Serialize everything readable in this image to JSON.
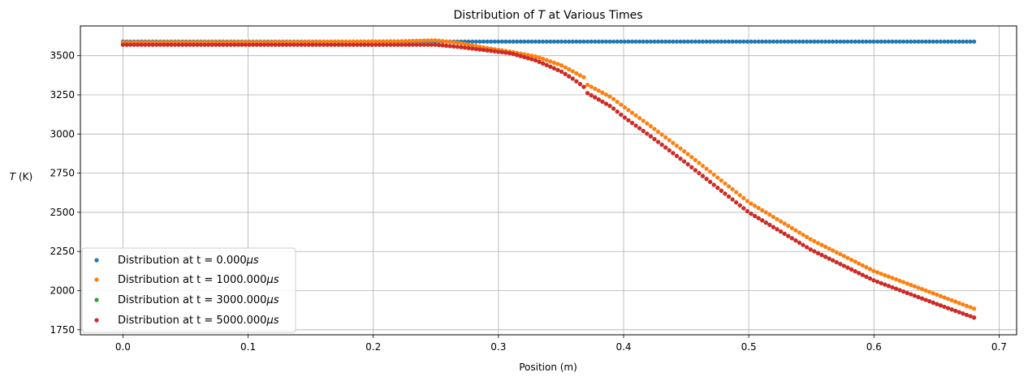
{
  "chart_data": {
    "type": "scatter",
    "title_prefix": "Distribution of ",
    "title_var": "T",
    "title_suffix": " at Various Times",
    "xlabel": "Position (m)",
    "ylabel_var": "T",
    "ylabel_unit": " (K)",
    "xlim": [
      -0.034,
      0.714
    ],
    "ylim": [
      1718,
      3690
    ],
    "xticks": [
      0.0,
      0.1,
      0.2,
      0.3,
      0.4,
      0.5,
      0.6,
      0.7
    ],
    "xtick_labels": [
      "0.0",
      "0.1",
      "0.2",
      "0.3",
      "0.4",
      "0.5",
      "0.6",
      "0.7"
    ],
    "yticks": [
      1750,
      2000,
      2250,
      2500,
      2750,
      3000,
      3250,
      3500
    ],
    "ytick_labels": [
      "1750",
      "2000",
      "2250",
      "2500",
      "2750",
      "3000",
      "3250",
      "3500"
    ],
    "grid": true,
    "legend_position": "lower-left",
    "x_range": [
      0.0,
      0.68
    ],
    "points_per_series": 230,
    "series": [
      {
        "name_prefix": "Distribution at t = 0.000",
        "name_unit": "μs",
        "color": "#1f77b4",
        "profile": [
          [
            0.0,
            3590
          ],
          [
            0.68,
            3590
          ]
        ]
      },
      {
        "name_prefix": "Distribution at t = 1000.000",
        "name_unit": "μs",
        "color": "#ff7f0e",
        "profile": [
          [
            0.0,
            3585
          ],
          [
            0.14,
            3588
          ],
          [
            0.22,
            3592
          ],
          [
            0.25,
            3598
          ],
          [
            0.27,
            3580
          ],
          [
            0.29,
            3550
          ],
          [
            0.31,
            3525
          ],
          [
            0.33,
            3495
          ],
          [
            0.35,
            3440
          ],
          [
            0.37,
            3355
          ],
          [
            0.371,
            3315
          ],
          [
            0.39,
            3235
          ],
          [
            0.4,
            3175
          ],
          [
            0.42,
            3060
          ],
          [
            0.45,
            2880
          ],
          [
            0.5,
            2565
          ],
          [
            0.55,
            2325
          ],
          [
            0.6,
            2125
          ],
          [
            0.65,
            1975
          ],
          [
            0.68,
            1885
          ]
        ]
      },
      {
        "name_prefix": "Distribution at t = 3000.000",
        "name_unit": "μs",
        "color": "#2ca02c",
        "profile": [
          [
            0.0,
            3570
          ],
          [
            0.25,
            3570
          ],
          [
            0.27,
            3555
          ],
          [
            0.29,
            3535
          ],
          [
            0.31,
            3515
          ],
          [
            0.33,
            3470
          ],
          [
            0.35,
            3400
          ],
          [
            0.36,
            3350
          ],
          [
            0.37,
            3290
          ],
          [
            0.371,
            3262
          ],
          [
            0.39,
            3175
          ],
          [
            0.4,
            3110
          ],
          [
            0.42,
            2995
          ],
          [
            0.45,
            2815
          ],
          [
            0.5,
            2500
          ],
          [
            0.55,
            2260
          ],
          [
            0.6,
            2065
          ],
          [
            0.65,
            1915
          ],
          [
            0.68,
            1828
          ]
        ]
      },
      {
        "name_prefix": "Distribution at t = 5000.000",
        "name_unit": "μs",
        "color": "#d62728",
        "profile": [
          [
            0.0,
            3570
          ],
          [
            0.25,
            3570
          ],
          [
            0.27,
            3555
          ],
          [
            0.29,
            3535
          ],
          [
            0.31,
            3515
          ],
          [
            0.33,
            3470
          ],
          [
            0.35,
            3400
          ],
          [
            0.36,
            3350
          ],
          [
            0.37,
            3290
          ],
          [
            0.371,
            3262
          ],
          [
            0.39,
            3175
          ],
          [
            0.4,
            3110
          ],
          [
            0.42,
            2995
          ],
          [
            0.45,
            2815
          ],
          [
            0.5,
            2500
          ],
          [
            0.55,
            2260
          ],
          [
            0.6,
            2065
          ],
          [
            0.65,
            1915
          ],
          [
            0.68,
            1828
          ]
        ]
      }
    ]
  }
}
